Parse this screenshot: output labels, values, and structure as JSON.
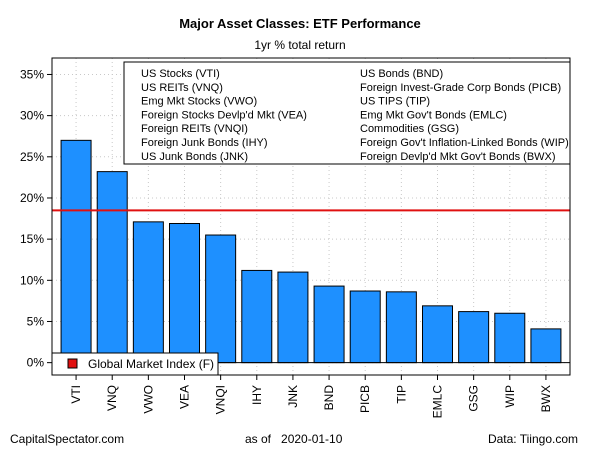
{
  "chart_data": {
    "type": "bar",
    "title": "Major Asset Classes: ETF Performance",
    "subtitle": "1yr % total return",
    "categories": [
      "VTI",
      "VNQ",
      "VWO",
      "VEA",
      "VNQI",
      "IHY",
      "JNK",
      "BND",
      "PICB",
      "TIP",
      "EMLC",
      "GSG",
      "WIP",
      "BWX"
    ],
    "values": [
      27.0,
      23.2,
      17.1,
      16.9,
      15.5,
      11.2,
      11.0,
      9.3,
      8.7,
      8.6,
      6.9,
      6.2,
      6.0,
      4.1
    ],
    "ylim": [
      -1.5,
      37
    ],
    "yticks": [
      0,
      5,
      10,
      15,
      20,
      25,
      30,
      35
    ],
    "ytick_labels": [
      "0%",
      "5%",
      "10%",
      "15%",
      "20%",
      "25%",
      "30%",
      "35%"
    ],
    "reference_line": {
      "label": "Global Market Index (F)",
      "value": 18.5,
      "color": "#e01010"
    },
    "bar_color": "#1e90ff",
    "grid": true,
    "legend_placement": "top",
    "legend_left": [
      "US Stocks (VTI)",
      "US REITs (VNQ)",
      "Emg Mkt Stocks (VWO)",
      "Foreign Stocks Devlp'd Mkt (VEA)",
      "Foreign REITs (VNQI)",
      "Foreign Junk Bonds (IHY)",
      "US Junk Bonds (JNK)"
    ],
    "legend_right": [
      "US Bonds (BND)",
      "Foreign Invest-Grade Corp Bonds (PICB)",
      "US TIPS (TIP)",
      "Emg Mkt Gov't Bonds (EMLC)",
      "Commodities (GSG)",
      "Foreign Gov't Inflation-Linked Bonds (WIP)",
      "Foreign Devlp'd Mkt Gov't Bonds (BWX)"
    ]
  },
  "footer": {
    "left": "CapitalSpectator.com",
    "center": "as of   2020-01-10",
    "right": "Data: Tiingo.com"
  }
}
